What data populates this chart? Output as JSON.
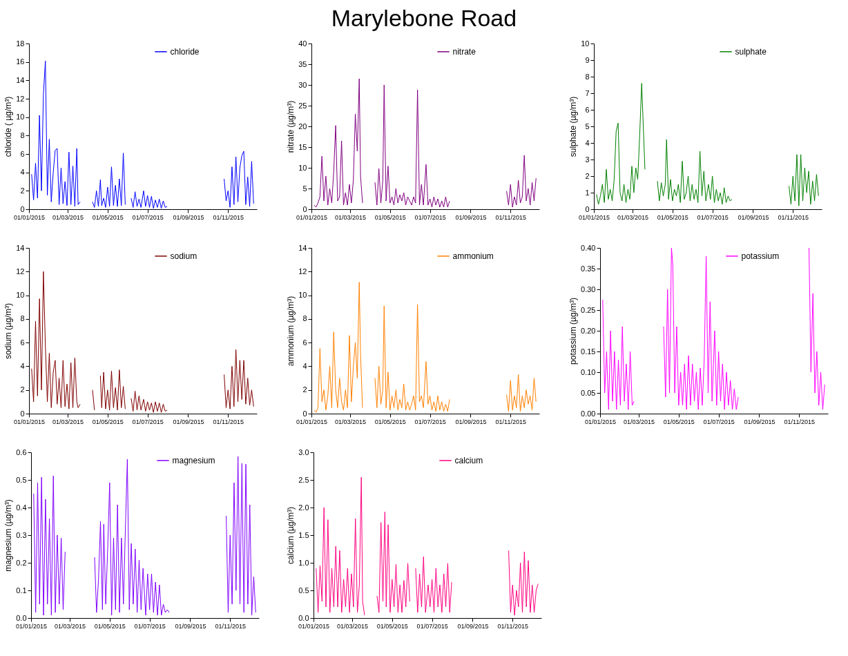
{
  "chart_data": [
    {
      "type": "line",
      "ylabel": "chloride ( µg/m³)",
      "legend": "top right",
      "xlim": [
        "2015-01-01",
        "2015-12-15"
      ],
      "xticks": [
        {
          "value": "2015-01-01",
          "label": "01/01/2015"
        },
        {
          "value": "2015-03-01",
          "label": "01/03/2015"
        },
        {
          "value": "2015-05-01",
          "label": "01/05/2015"
        },
        {
          "value": "2015-07-01",
          "label": "01/07/2015"
        },
        {
          "value": "2015-09-01",
          "label": "01/09/2015"
        },
        {
          "value": "2015-11-01",
          "label": "01/11/2015"
        }
      ],
      "ylim": [
        0,
        18
      ],
      "yticks": [
        0,
        2,
        4,
        6,
        8,
        10,
        12,
        14,
        16,
        18
      ],
      "x": [
        "2015-01-05",
        "2015-01-08",
        "2015-01-11",
        "2015-01-14",
        "2015-01-17",
        "2015-01-20",
        "2015-01-23",
        "2015-01-26",
        "2015-01-29",
        "2015-02-01",
        "2015-02-04",
        "2015-02-07",
        "2015-02-10",
        "2015-02-13",
        "2015-02-16",
        "2015-02-19",
        "2015-02-22",
        "2015-02-25",
        "2015-02-28",
        "2015-03-03",
        "2015-03-06",
        "2015-03-09",
        "2015-03-12",
        "2015-03-15",
        "2015-03-17",
        "2015-03-20",
        "2015-03-30",
        "2015-04-08",
        "2015-04-11",
        "2015-04-14",
        "2015-04-17",
        "2015-04-20",
        "2015-04-22",
        "2015-04-25",
        "2015-04-28",
        "2015-05-01",
        "2015-05-04",
        "2015-05-07",
        "2015-05-10",
        "2015-05-13",
        "2015-05-16",
        "2015-05-19",
        "2015-05-22",
        "2015-05-25",
        "2015-05-28",
        "2015-05-31",
        "2015-06-03",
        "2015-06-06",
        "2015-06-09",
        "2015-06-12",
        "2015-06-15",
        "2015-06-18",
        "2015-06-21",
        "2015-06-25",
        "2015-06-28",
        "2015-07-01",
        "2015-07-04",
        "2015-07-07",
        "2015-07-10",
        "2015-07-13",
        "2015-07-16",
        "2015-07-19",
        "2015-07-22",
        "2015-07-25",
        "2015-07-28",
        "2015-07-31",
        "2015-09-01",
        "2015-10-26",
        "2015-10-29",
        "2015-11-01",
        "2015-11-04",
        "2015-11-07",
        "2015-11-10",
        "2015-11-13",
        "2015-11-16",
        "2015-11-19",
        "2015-11-22",
        "2015-11-25",
        "2015-11-28",
        "2015-12-01",
        "2015-12-04",
        "2015-12-07",
        "2015-12-10"
      ],
      "series": [
        {
          "name": "chloride",
          "color": "#0000ff",
          "values": [
            3.8,
            1.0,
            5.0,
            1.2,
            10.2,
            2.0,
            12.5,
            16.1,
            1.5,
            7.6,
            0.8,
            4.0,
            6.4,
            6.6,
            0.5,
            4.5,
            0.6,
            3.0,
            0.4,
            6.2,
            0.5,
            4.7,
            0.3,
            6.6,
            0.5,
            0.8,
            null,
            0.8,
            0.2,
            2.0,
            0.3,
            3.2,
            0.4,
            1.2,
            0.2,
            2.4,
            0.3,
            4.6,
            0.4,
            2.6,
            0.3,
            3.3,
            0.4,
            6.1,
            0.5,
            null,
            null,
            1.2,
            0.2,
            1.9,
            0.3,
            1.1,
            0.2,
            2.0,
            0.3,
            1.5,
            0.2,
            1.4,
            0.1,
            1.0,
            0.2,
            1.1,
            0.1,
            0.9,
            0.2,
            0.3,
            null,
            3.3,
            0.9,
            2.0,
            0.2,
            4.6,
            0.5,
            5.7,
            0.8,
            4.5,
            5.8,
            6.3,
            0.5,
            3.5,
            0.3,
            5.2,
            0.6
          ]
        }
      ]
    },
    {
      "type": "line",
      "title": "Marylebone Road",
      "ylabel": "nitrate (µg/m³)",
      "legend": "top right",
      "xlim": [
        "2015-01-01",
        "2015-12-15"
      ],
      "xticks": [
        {
          "value": "2015-01-01",
          "label": "01/01/2015"
        },
        {
          "value": "2015-03-01",
          "label": "01/03/2015"
        },
        {
          "value": "2015-05-01",
          "label": "01/05/2015"
        },
        {
          "value": "2015-07-01",
          "label": "01/07/2015"
        },
        {
          "value": "2015-09-01",
          "label": "01/09/2015"
        },
        {
          "value": "2015-11-01",
          "label": "01/11/2015"
        }
      ],
      "ylim": [
        0,
        40
      ],
      "yticks": [
        0,
        5,
        10,
        15,
        20,
        25,
        30,
        35,
        40
      ],
      "x": [
        "2015-01-05",
        "2015-01-08",
        "2015-01-11",
        "2015-01-14",
        "2015-01-17",
        "2015-01-20",
        "2015-01-23",
        "2015-01-26",
        "2015-01-29",
        "2015-02-01",
        "2015-02-04",
        "2015-02-07",
        "2015-02-10",
        "2015-02-13",
        "2015-02-16",
        "2015-02-19",
        "2015-02-22",
        "2015-02-25",
        "2015-02-28",
        "2015-03-03",
        "2015-03-06",
        "2015-03-09",
        "2015-03-12",
        "2015-03-15",
        "2015-03-17",
        "2015-03-20",
        "2015-03-30",
        "2015-04-08",
        "2015-04-11",
        "2015-04-14",
        "2015-04-17",
        "2015-04-20",
        "2015-04-22",
        "2015-04-25",
        "2015-04-28",
        "2015-05-01",
        "2015-05-04",
        "2015-05-07",
        "2015-05-10",
        "2015-05-13",
        "2015-05-16",
        "2015-05-19",
        "2015-05-22",
        "2015-05-25",
        "2015-05-28",
        "2015-05-31",
        "2015-06-03",
        "2015-06-06",
        "2015-06-09",
        "2015-06-12",
        "2015-06-15",
        "2015-06-18",
        "2015-06-21",
        "2015-06-25",
        "2015-06-28",
        "2015-07-01",
        "2015-07-04",
        "2015-07-07",
        "2015-07-10",
        "2015-07-13",
        "2015-07-16",
        "2015-07-19",
        "2015-07-22",
        "2015-07-25",
        "2015-07-28",
        "2015-07-31",
        "2015-09-01",
        "2015-10-26",
        "2015-10-29",
        "2015-11-01",
        "2015-11-04",
        "2015-11-07",
        "2015-11-10",
        "2015-11-13",
        "2015-11-16",
        "2015-11-19",
        "2015-11-22",
        "2015-11-25",
        "2015-11-28",
        "2015-12-01",
        "2015-12-04",
        "2015-12-07",
        "2015-12-10"
      ],
      "series": [
        {
          "name": "nitrate",
          "color": "#800080",
          "values": [
            1.0,
            0.5,
            1.5,
            3.0,
            12.8,
            2.0,
            8.0,
            1.0,
            5.0,
            1.5,
            9.0,
            20.2,
            2.0,
            3.0,
            16.5,
            1.0,
            4.0,
            1.0,
            6.0,
            1.5,
            7.0,
            23.0,
            14.0,
            31.5,
            8.0,
            1.5,
            null,
            6.5,
            1.0,
            9.8,
            1.5,
            7.0,
            30.0,
            2.0,
            10.4,
            1.5,
            3.0,
            1.0,
            5.0,
            1.5,
            3.5,
            2.0,
            4.0,
            1.0,
            3.0,
            2.0,
            1.0,
            3.0,
            1.5,
            28.8,
            1.0,
            6.0,
            1.0,
            10.8,
            1.0,
            2.5,
            0.5,
            3.0,
            1.0,
            2.5,
            0.5,
            2.0,
            0.5,
            3.0,
            0.5,
            2.0,
            null,
            4.4,
            1.0,
            6.0,
            0.5,
            3.0,
            1.0,
            7.0,
            1.5,
            3.0,
            13.0,
            2.0,
            5.0,
            1.0,
            6.5,
            2.0,
            7.5
          ]
        }
      ]
    },
    {
      "type": "line",
      "ylabel": "sulphate (µg/m³)",
      "legend": "top right",
      "xlim": [
        "2015-01-01",
        "2015-12-15"
      ],
      "xticks": [
        {
          "value": "2015-01-01",
          "label": "01/01/2015"
        },
        {
          "value": "2015-03-01",
          "label": "01/03/2015"
        },
        {
          "value": "2015-05-01",
          "label": "01/05/2015"
        },
        {
          "value": "2015-07-01",
          "label": "01/07/2015"
        },
        {
          "value": "2015-09-01",
          "label": "01/09/2015"
        },
        {
          "value": "2015-11-01",
          "label": "01/11/2015"
        }
      ],
      "ylim": [
        0,
        10
      ],
      "yticks": [
        0,
        1,
        2,
        3,
        4,
        5,
        6,
        7,
        8,
        9,
        10
      ],
      "x": [
        "2015-01-05",
        "2015-01-08",
        "2015-01-11",
        "2015-01-14",
        "2015-01-17",
        "2015-01-20",
        "2015-01-23",
        "2015-01-26",
        "2015-01-29",
        "2015-02-01",
        "2015-02-04",
        "2015-02-07",
        "2015-02-10",
        "2015-02-13",
        "2015-02-16",
        "2015-02-19",
        "2015-02-22",
        "2015-02-25",
        "2015-02-28",
        "2015-03-03",
        "2015-03-06",
        "2015-03-09",
        "2015-03-12",
        "2015-03-15",
        "2015-03-17",
        "2015-03-20",
        "2015-03-30",
        "2015-04-08",
        "2015-04-11",
        "2015-04-14",
        "2015-04-17",
        "2015-04-20",
        "2015-04-22",
        "2015-04-25",
        "2015-04-28",
        "2015-05-01",
        "2015-05-04",
        "2015-05-07",
        "2015-05-10",
        "2015-05-13",
        "2015-05-16",
        "2015-05-19",
        "2015-05-22",
        "2015-05-25",
        "2015-05-28",
        "2015-05-31",
        "2015-06-03",
        "2015-06-06",
        "2015-06-09",
        "2015-06-12",
        "2015-06-15",
        "2015-06-18",
        "2015-06-21",
        "2015-06-25",
        "2015-06-28",
        "2015-07-01",
        "2015-07-04",
        "2015-07-07",
        "2015-07-10",
        "2015-07-13",
        "2015-07-16",
        "2015-07-19",
        "2015-07-22",
        "2015-07-25",
        "2015-07-28",
        "2015-07-31",
        "2015-09-01",
        "2015-10-26",
        "2015-10-29",
        "2015-11-01",
        "2015-11-04",
        "2015-11-07",
        "2015-11-10",
        "2015-11-13",
        "2015-11-16",
        "2015-11-19",
        "2015-11-22",
        "2015-11-25",
        "2015-11-28",
        "2015-12-01",
        "2015-12-04",
        "2015-12-07",
        "2015-12-10"
      ],
      "series": [
        {
          "name": "sulphate",
          "color": "#008000",
          "values": [
            0.9,
            0.3,
            0.8,
            1.5,
            0.4,
            2.4,
            0.6,
            1.2,
            0.5,
            1.8,
            4.7,
            5.2,
            1.0,
            0.5,
            1.5,
            0.4,
            1.2,
            0.6,
            2.6,
            1.0,
            2.5,
            1.8,
            4.5,
            7.6,
            5.5,
            2.4,
            null,
            1.7,
            0.5,
            1.6,
            0.8,
            1.5,
            4.2,
            0.6,
            1.8,
            0.5,
            1.2,
            0.8,
            1.5,
            0.4,
            2.9,
            0.6,
            1.0,
            2.0,
            0.5,
            1.5,
            0.6,
            1.2,
            0.4,
            3.5,
            0.8,
            2.3,
            0.5,
            1.5,
            0.6,
            2.0,
            0.4,
            1.2,
            0.5,
            1.0,
            0.3,
            1.3,
            0.4,
            0.8,
            0.5,
            0.6,
            null,
            1.4,
            0.3,
            2.0,
            0.5,
            3.3,
            0.2,
            3.3,
            0.5,
            2.5,
            1.0,
            2.3,
            0.3,
            1.7,
            0.5,
            2.1,
            0.8
          ]
        }
      ]
    },
    {
      "type": "line",
      "ylabel": "sodium (µg/m³)",
      "legend": "top right",
      "xlim": [
        "2015-01-01",
        "2015-12-15"
      ],
      "xticks": [
        {
          "value": "2015-01-01",
          "label": "01/01/2015"
        },
        {
          "value": "2015-03-01",
          "label": "01/03/2015"
        },
        {
          "value": "2015-05-01",
          "label": "01/05/2015"
        },
        {
          "value": "2015-07-01",
          "label": "01/07/2015"
        },
        {
          "value": "2015-09-01",
          "label": "01/09/2015"
        },
        {
          "value": "2015-11-01",
          "label": "01/11/2015"
        }
      ],
      "ylim": [
        0,
        14
      ],
      "yticks": [
        0,
        2,
        4,
        6,
        8,
        10,
        12,
        14
      ],
      "x": [
        "2015-01-05",
        "2015-01-08",
        "2015-01-11",
        "2015-01-14",
        "2015-01-17",
        "2015-01-20",
        "2015-01-23",
        "2015-01-26",
        "2015-01-29",
        "2015-02-01",
        "2015-02-04",
        "2015-02-07",
        "2015-02-10",
        "2015-02-13",
        "2015-02-16",
        "2015-02-19",
        "2015-02-22",
        "2015-02-25",
        "2015-02-28",
        "2015-03-03",
        "2015-03-06",
        "2015-03-09",
        "2015-03-12",
        "2015-03-15",
        "2015-03-17",
        "2015-03-20",
        "2015-03-30",
        "2015-04-08",
        "2015-04-11",
        "2015-04-14",
        "2015-04-17",
        "2015-04-20",
        "2015-04-22",
        "2015-04-25",
        "2015-04-28",
        "2015-05-01",
        "2015-05-04",
        "2015-05-07",
        "2015-05-10",
        "2015-05-13",
        "2015-05-16",
        "2015-05-19",
        "2015-05-22",
        "2015-05-25",
        "2015-05-28",
        "2015-05-31",
        "2015-06-03",
        "2015-06-06",
        "2015-06-09",
        "2015-06-12",
        "2015-06-15",
        "2015-06-18",
        "2015-06-21",
        "2015-06-25",
        "2015-06-28",
        "2015-07-01",
        "2015-07-04",
        "2015-07-07",
        "2015-07-10",
        "2015-07-13",
        "2015-07-16",
        "2015-07-19",
        "2015-07-22",
        "2015-07-25",
        "2015-07-28",
        "2015-07-31",
        "2015-09-01",
        "2015-10-26",
        "2015-10-29",
        "2015-11-01",
        "2015-11-04",
        "2015-11-07",
        "2015-11-10",
        "2015-11-13",
        "2015-11-16",
        "2015-11-19",
        "2015-11-22",
        "2015-11-25",
        "2015-11-28",
        "2015-12-01",
        "2015-12-04",
        "2015-12-07",
        "2015-12-10"
      ],
      "series": [
        {
          "name": "sodium",
          "color": "#800000",
          "values": [
            3.8,
            1.0,
            7.8,
            1.5,
            9.7,
            2.0,
            12.0,
            5.7,
            1.0,
            5.1,
            0.5,
            3.5,
            4.5,
            0.8,
            3.0,
            0.5,
            4.5,
            0.6,
            2.5,
            0.4,
            4.3,
            0.5,
            4.7,
            1.0,
            0.5,
            0.8,
            null,
            2.0,
            0.3,
            null,
            null,
            3.2,
            0.5,
            3.5,
            0.4,
            2.0,
            0.3,
            3.6,
            0.5,
            2.2,
            0.3,
            3.7,
            0.5,
            2.3,
            0.4,
            null,
            null,
            1.3,
            0.2,
            1.9,
            0.3,
            1.5,
            0.3,
            1.2,
            0.2,
            1.0,
            0.3,
            0.9,
            0.1,
            1.0,
            0.2,
            0.9,
            0.1,
            0.8,
            0.2,
            0.3,
            null,
            3.3,
            0.5,
            2.0,
            0.4,
            4.0,
            0.6,
            5.4,
            1.0,
            4.5,
            1.2,
            4.5,
            0.8,
            3.0,
            0.7,
            2.0,
            0.6
          ]
        }
      ]
    },
    {
      "type": "line",
      "ylabel": "ammonium (µg/m³)",
      "legend": "top right",
      "xlim": [
        "2015-01-01",
        "2015-12-15"
      ],
      "xticks": [
        {
          "value": "2015-01-01",
          "label": "01/01/2015"
        },
        {
          "value": "2015-03-01",
          "label": "01/03/2015"
        },
        {
          "value": "2015-05-01",
          "label": "01/05/2015"
        },
        {
          "value": "2015-07-01",
          "label": "01/07/2015"
        },
        {
          "value": "2015-09-01",
          "label": "01/09/2015"
        },
        {
          "value": "2015-11-01",
          "label": "01/11/2015"
        }
      ],
      "ylim": [
        0,
        14
      ],
      "yticks": [
        0,
        2,
        4,
        6,
        8,
        10,
        12,
        14
      ],
      "x": [
        "2015-01-05",
        "2015-01-08",
        "2015-01-11",
        "2015-01-14",
        "2015-01-17",
        "2015-01-20",
        "2015-01-23",
        "2015-01-26",
        "2015-01-29",
        "2015-02-01",
        "2015-02-04",
        "2015-02-07",
        "2015-02-10",
        "2015-02-13",
        "2015-02-16",
        "2015-02-19",
        "2015-02-22",
        "2015-02-25",
        "2015-02-28",
        "2015-03-03",
        "2015-03-06",
        "2015-03-09",
        "2015-03-12",
        "2015-03-15",
        "2015-03-17",
        "2015-03-20",
        "2015-03-30",
        "2015-04-08",
        "2015-04-11",
        "2015-04-14",
        "2015-04-17",
        "2015-04-20",
        "2015-04-22",
        "2015-04-25",
        "2015-04-28",
        "2015-05-01",
        "2015-05-04",
        "2015-05-07",
        "2015-05-10",
        "2015-05-13",
        "2015-05-16",
        "2015-05-19",
        "2015-05-22",
        "2015-05-25",
        "2015-05-28",
        "2015-05-31",
        "2015-06-03",
        "2015-06-06",
        "2015-06-09",
        "2015-06-12",
        "2015-06-15",
        "2015-06-18",
        "2015-06-21",
        "2015-06-25",
        "2015-06-28",
        "2015-07-01",
        "2015-07-04",
        "2015-07-07",
        "2015-07-10",
        "2015-07-13",
        "2015-07-16",
        "2015-07-19",
        "2015-07-22",
        "2015-07-25",
        "2015-07-28",
        "2015-07-31",
        "2015-09-01",
        "2015-10-26",
        "2015-10-29",
        "2015-11-01",
        "2015-11-04",
        "2015-11-07",
        "2015-11-10",
        "2015-11-13",
        "2015-11-16",
        "2015-11-19",
        "2015-11-22",
        "2015-11-25",
        "2015-11-28",
        "2015-12-01",
        "2015-12-04",
        "2015-12-07",
        "2015-12-10"
      ],
      "series": [
        {
          "name": "ammonium",
          "color": "#ff8000",
          "values": [
            0.3,
            0.1,
            0.5,
            5.5,
            1.0,
            2.0,
            0.3,
            1.5,
            4.0,
            0.5,
            6.9,
            2.0,
            0.5,
            3.0,
            1.0,
            0.3,
            2.0,
            0.5,
            6.6,
            1.0,
            4.0,
            6.0,
            3.0,
            11.1,
            5.0,
            0.5,
            null,
            3.0,
            0.5,
            4.0,
            0.8,
            2.0,
            9.1,
            0.5,
            3.5,
            0.3,
            1.5,
            0.5,
            2.0,
            0.3,
            1.2,
            0.5,
            2.5,
            0.3,
            1.0,
            0.3,
            0.8,
            1.5,
            0.3,
            9.2,
            1.0,
            1.5,
            0.5,
            4.4,
            0.8,
            1.5,
            0.3,
            1.0,
            0.2,
            1.5,
            0.3,
            1.0,
            0.2,
            0.8,
            0.2,
            1.2,
            null,
            1.6,
            0.2,
            2.8,
            0.3,
            1.5,
            0.5,
            3.3,
            0.2,
            1.5,
            0.5,
            2.0,
            0.8,
            1.5,
            0.3,
            3.0,
            1.0
          ]
        }
      ]
    },
    {
      "type": "line",
      "ylabel": "potassium (µg/m³)",
      "legend": "top right",
      "xlim": [
        "2015-01-01",
        "2015-12-15"
      ],
      "xticks": [
        {
          "value": "2015-01-01",
          "label": "01/01/2015"
        },
        {
          "value": "2015-03-01",
          "label": "01/03/2015"
        },
        {
          "value": "2015-05-01",
          "label": "01/05/2015"
        },
        {
          "value": "2015-07-01",
          "label": "01/07/2015"
        },
        {
          "value": "2015-09-01",
          "label": "01/09/2015"
        },
        {
          "value": "2015-11-01",
          "label": "01/11/2015"
        }
      ],
      "ylim": [
        0,
        0.4
      ],
      "yticks": [
        {
          "value": 0,
          "label": "0.00"
        },
        {
          "value": 0.05,
          "label": "0.05"
        },
        {
          "value": 0.1,
          "label": "0.10"
        },
        {
          "value": 0.15,
          "label": "0.15"
        },
        {
          "value": 0.2,
          "label": "0.20"
        },
        {
          "value": 0.25,
          "label": "0.25"
        },
        {
          "value": 0.3,
          "label": "0.30"
        },
        {
          "value": 0.35,
          "label": "0.35"
        },
        {
          "value": 0.4,
          "label": "0.40"
        }
      ],
      "x": [
        "2015-01-05",
        "2015-01-08",
        "2015-01-11",
        "2015-01-14",
        "2015-01-17",
        "2015-01-20",
        "2015-01-23",
        "2015-01-26",
        "2015-01-29",
        "2015-02-01",
        "2015-02-04",
        "2015-02-07",
        "2015-02-10",
        "2015-02-13",
        "2015-02-16",
        "2015-02-19",
        "2015-02-22",
        "2015-02-25",
        "2015-02-28",
        "2015-03-03",
        "2015-03-06",
        "2015-03-09",
        "2015-03-12",
        "2015-03-15",
        "2015-03-17",
        "2015-03-20",
        "2015-03-30",
        "2015-04-08",
        "2015-04-11",
        "2015-04-14",
        "2015-04-17",
        "2015-04-20",
        "2015-04-22",
        "2015-04-25",
        "2015-04-28",
        "2015-05-01",
        "2015-05-04",
        "2015-05-07",
        "2015-05-10",
        "2015-05-13",
        "2015-05-16",
        "2015-05-19",
        "2015-05-22",
        "2015-05-25",
        "2015-05-28",
        "2015-05-31",
        "2015-06-03",
        "2015-06-06",
        "2015-06-09",
        "2015-06-12",
        "2015-06-15",
        "2015-06-18",
        "2015-06-21",
        "2015-06-25",
        "2015-06-28",
        "2015-07-01",
        "2015-07-04",
        "2015-07-07",
        "2015-07-10",
        "2015-07-13",
        "2015-07-16",
        "2015-07-19",
        "2015-07-22",
        "2015-07-25",
        "2015-07-28",
        "2015-07-31",
        "2015-09-01",
        "2015-10-26",
        "2015-10-29",
        "2015-11-01",
        "2015-11-04",
        "2015-11-07",
        "2015-11-10",
        "2015-11-13",
        "2015-11-16",
        "2015-11-19",
        "2015-11-22",
        "2015-11-25",
        "2015-11-28",
        "2015-12-01",
        "2015-12-04",
        "2015-12-07",
        "2015-12-10"
      ],
      "series": [
        {
          "name": "potassium",
          "color": "#ff00ff",
          "values": [
            0.275,
            0.05,
            0.15,
            0.01,
            0.2,
            0.03,
            0.15,
            0.01,
            0.13,
            0.02,
            0.21,
            0.03,
            0.12,
            0.01,
            0.15,
            0.02,
            0.03,
            null,
            null,
            null,
            null,
            null,
            null,
            null,
            null,
            null,
            null,
            0.21,
            0.04,
            0.3,
            0.05,
            0.4,
            0.36,
            0.05,
            0.21,
            0.02,
            0.1,
            0.02,
            0.12,
            0.01,
            0.14,
            0.02,
            0.12,
            0.03,
            0.1,
            0.01,
            0.11,
            0.02,
            0.13,
            0.38,
            0.05,
            0.27,
            0.03,
            0.2,
            0.02,
            0.15,
            0.03,
            0.12,
            0.01,
            0.1,
            0.02,
            0.08,
            0.01,
            0.06,
            0.01,
            0.04,
            null,
            null,
            null,
            null,
            null,
            null,
            null,
            null,
            0.4,
            0.1,
            0.29,
            0.05,
            0.15,
            0.02,
            0.1,
            0.01,
            0.07
          ]
        }
      ]
    },
    {
      "type": "line",
      "ylabel": "magnesium (µg/m³)",
      "legend": "top right",
      "xlim": [
        "2015-01-01",
        "2015-12-15"
      ],
      "xticks": [
        {
          "value": "2015-01-01",
          "label": "01/01/2015"
        },
        {
          "value": "2015-03-01",
          "label": "01/03/2015"
        },
        {
          "value": "2015-05-01",
          "label": "01/05/2015"
        },
        {
          "value": "2015-07-01",
          "label": "01/07/2015"
        },
        {
          "value": "2015-09-01",
          "label": "01/09/2015"
        },
        {
          "value": "2015-11-01",
          "label": "01/11/2015"
        }
      ],
      "ylim": [
        0,
        0.6
      ],
      "yticks": [
        {
          "value": 0,
          "label": "0.0"
        },
        0.1,
        0.2,
        0.3,
        0.4,
        0.5,
        0.6
      ],
      "x": [
        "2015-01-05",
        "2015-01-08",
        "2015-01-11",
        "2015-01-14",
        "2015-01-17",
        "2015-01-20",
        "2015-01-23",
        "2015-01-26",
        "2015-01-29",
        "2015-02-01",
        "2015-02-04",
        "2015-02-07",
        "2015-02-10",
        "2015-02-13",
        "2015-02-16",
        "2015-02-19",
        "2015-02-22",
        "2015-02-25",
        "2015-02-28",
        "2015-03-03",
        "2015-03-06",
        "2015-03-09",
        "2015-03-12",
        "2015-03-15",
        "2015-03-17",
        "2015-03-20",
        "2015-03-30",
        "2015-04-08",
        "2015-04-11",
        "2015-04-14",
        "2015-04-17",
        "2015-04-20",
        "2015-04-22",
        "2015-04-25",
        "2015-04-28",
        "2015-05-01",
        "2015-05-04",
        "2015-05-07",
        "2015-05-10",
        "2015-05-13",
        "2015-05-16",
        "2015-05-19",
        "2015-05-22",
        "2015-05-25",
        "2015-05-28",
        "2015-05-31",
        "2015-06-03",
        "2015-06-06",
        "2015-06-09",
        "2015-06-12",
        "2015-06-15",
        "2015-06-18",
        "2015-06-21",
        "2015-06-25",
        "2015-06-28",
        "2015-07-01",
        "2015-07-04",
        "2015-07-07",
        "2015-07-10",
        "2015-07-13",
        "2015-07-16",
        "2015-07-19",
        "2015-07-22",
        "2015-07-25",
        "2015-07-28",
        "2015-07-31",
        "2015-09-01",
        "2015-10-26",
        "2015-10-29",
        "2015-11-01",
        "2015-11-04",
        "2015-11-07",
        "2015-11-10",
        "2015-11-13",
        "2015-11-16",
        "2015-11-19",
        "2015-11-22",
        "2015-11-25",
        "2015-11-28",
        "2015-12-01",
        "2015-12-04",
        "2015-12-07",
        "2015-12-10"
      ],
      "series": [
        {
          "name": "magnesium",
          "color": "#8000ff",
          "values": [
            0.45,
            0.02,
            0.49,
            0.05,
            0.51,
            0.01,
            0.43,
            0.05,
            0.36,
            0.01,
            0.515,
            0.02,
            0.3,
            0.05,
            0.29,
            0.03,
            0.24,
            null,
            null,
            null,
            null,
            null,
            null,
            null,
            null,
            null,
            null,
            0.22,
            0.02,
            0.14,
            0.35,
            0.03,
            0.34,
            0.05,
            0.25,
            0.49,
            0.01,
            0.29,
            0.03,
            0.41,
            0.02,
            0.29,
            0.05,
            0.32,
            0.575,
            0.03,
            0.27,
            0.05,
            0.25,
            0.02,
            0.21,
            0.03,
            0.18,
            0.01,
            0.16,
            0.03,
            0.16,
            0.02,
            0.13,
            0.01,
            0.12,
            0.01,
            0.05,
            0.02,
            0.03,
            0.02,
            null,
            0.37,
            0.02,
            0.3,
            0.05,
            0.49,
            0.1,
            0.585,
            0.05,
            0.56,
            0.02,
            0.557,
            0.05,
            0.41,
            0.01,
            0.15,
            0.02
          ]
        }
      ]
    },
    {
      "type": "line",
      "ylabel": "calcium (µg/m³)",
      "legend": "top right",
      "xlim": [
        "2015-01-01",
        "2015-12-15"
      ],
      "xticks": [
        {
          "value": "2015-01-01",
          "label": "01/01/2015"
        },
        {
          "value": "2015-03-01",
          "label": "01/03/2015"
        },
        {
          "value": "2015-05-01",
          "label": "01/05/2015"
        },
        {
          "value": "2015-07-01",
          "label": "01/07/2015"
        },
        {
          "value": "2015-09-01",
          "label": "01/09/2015"
        },
        {
          "value": "2015-11-01",
          "label": "01/11/2015"
        }
      ],
      "ylim": [
        0,
        3
      ],
      "yticks": [
        {
          "value": 0,
          "label": "0.0"
        },
        0.5,
        {
          "value": 1,
          "label": "1.0"
        },
        1.5,
        {
          "value": 2,
          "label": "2.0"
        },
        2.5,
        {
          "value": 3,
          "label": "3.0"
        }
      ],
      "x": [
        "2015-01-05",
        "2015-01-08",
        "2015-01-11",
        "2015-01-14",
        "2015-01-17",
        "2015-01-20",
        "2015-01-23",
        "2015-01-26",
        "2015-01-29",
        "2015-02-01",
        "2015-02-04",
        "2015-02-07",
        "2015-02-10",
        "2015-02-13",
        "2015-02-16",
        "2015-02-19",
        "2015-02-22",
        "2015-02-25",
        "2015-02-28",
        "2015-03-03",
        "2015-03-06",
        "2015-03-09",
        "2015-03-12",
        "2015-03-15",
        "2015-03-17",
        "2015-03-20",
        "2015-03-30",
        "2015-04-08",
        "2015-04-11",
        "2015-04-14",
        "2015-04-17",
        "2015-04-20",
        "2015-04-22",
        "2015-04-25",
        "2015-04-28",
        "2015-05-01",
        "2015-05-04",
        "2015-05-07",
        "2015-05-10",
        "2015-05-13",
        "2015-05-16",
        "2015-05-19",
        "2015-05-22",
        "2015-05-25",
        "2015-05-28",
        "2015-05-31",
        "2015-06-03",
        "2015-06-06",
        "2015-06-09",
        "2015-06-12",
        "2015-06-15",
        "2015-06-18",
        "2015-06-21",
        "2015-06-25",
        "2015-06-28",
        "2015-07-01",
        "2015-07-04",
        "2015-07-07",
        "2015-07-10",
        "2015-07-13",
        "2015-07-16",
        "2015-07-19",
        "2015-07-22",
        "2015-07-25",
        "2015-07-28",
        "2015-07-31",
        "2015-09-01",
        "2015-10-26",
        "2015-10-29",
        "2015-11-01",
        "2015-11-04",
        "2015-11-07",
        "2015-11-10",
        "2015-11-13",
        "2015-11-16",
        "2015-11-19",
        "2015-11-22",
        "2015-11-25",
        "2015-11-28",
        "2015-12-01",
        "2015-12-04",
        "2015-12-07",
        "2015-12-10"
      ],
      "series": [
        {
          "name": "calcium",
          "color": "#ff0080",
          "values": [
            0.9,
            0.1,
            0.95,
            0.3,
            2.0,
            0.2,
            1.78,
            0.1,
            0.9,
            0.2,
            1.3,
            0.2,
            1.22,
            0.1,
            0.7,
            0.2,
            0.9,
            0.1,
            0.8,
            0.2,
            1.8,
            0.1,
            0.6,
            2.55,
            0.3,
            0.05,
            null,
            0.4,
            0.1,
            1.73,
            0.3,
            1.92,
            0.2,
            1.69,
            0.1,
            0.7,
            0.2,
            0.97,
            0.1,
            0.6,
            0.1,
            0.68,
            0.2,
            0.99,
            0.3,
            null,
            null,
            0.9,
            0.1,
            0.8,
            0.2,
            1.11,
            0.1,
            0.6,
            0.2,
            0.7,
            0.1,
            0.9,
            0.2,
            0.6,
            0.1,
            0.8,
            0.2,
            0.99,
            0.1,
            0.65,
            null,
            1.22,
            0.1,
            0.6,
            0.05,
            0.5,
            0.2,
            1.0,
            0.1,
            1.2,
            0.2,
            1.04,
            0.1,
            0.6,
            0.1,
            0.5,
            0.62
          ]
        }
      ]
    }
  ]
}
